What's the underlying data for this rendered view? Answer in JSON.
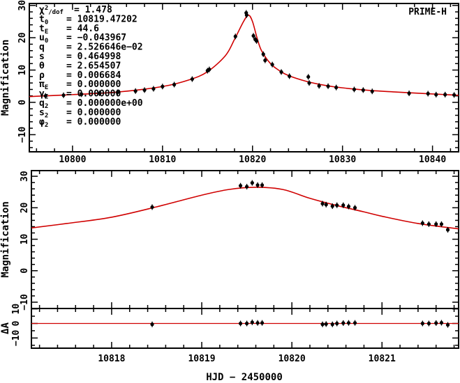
{
  "chart_data": [
    {
      "type": "scatter",
      "panel": "full light curve",
      "title": "",
      "label": "PRIME-H",
      "xlabel": "",
      "ylabel": "Magnification",
      "xlim": [
        10795.2,
        10842.9
      ],
      "ylim": [
        -15.3,
        30.6
      ],
      "xticks": [
        10800,
        10810,
        10820,
        10830,
        10840
      ],
      "yticks": [
        -10,
        0,
        10,
        20,
        30
      ],
      "model_color": "#d00000",
      "parameters": [
        {
          "sym": "χ",
          "sup": "2",
          "sub": "/dof",
          "value": "= 1.478"
        },
        {
          "sym": "t",
          "sub": "0",
          "value": "= 10819.47202"
        },
        {
          "sym": "t",
          "sub": "E",
          "value": "= 44.6"
        },
        {
          "sym": "u",
          "sub": "0",
          "value": "= −0.043967"
        },
        {
          "sym": "q",
          "sub": "",
          "value": "= 2.526646e−02"
        },
        {
          "sym": "s",
          "sub": "",
          "value": "= 0.464998"
        },
        {
          "sym": "θ",
          "sub": "",
          "value": "= 2.654507"
        },
        {
          "sym": "ρ",
          "sub": "",
          "value": "= 0.006684"
        },
        {
          "sym": "π",
          "sub": "E",
          "value": "= 0.000000"
        },
        {
          "sym": "γ",
          "sub": "E",
          "value": "= 0.000000"
        },
        {
          "sym": "q",
          "sub": "2",
          "value": "= 0.000000e+00"
        },
        {
          "sym": "s",
          "sub": "2",
          "value": "= 0.000000"
        },
        {
          "sym": "φ",
          "sub": "2",
          "value": "= 0.000000"
        }
      ],
      "points": [
        [
          10797.0,
          2.0
        ],
        [
          10799.0,
          2.2
        ],
        [
          10801.0,
          2.5
        ],
        [
          10803.0,
          2.8
        ],
        [
          10805.0,
          3.1
        ],
        [
          10807.0,
          3.5
        ],
        [
          10808.0,
          3.8
        ],
        [
          10809.0,
          4.2
        ],
        [
          10810.0,
          4.9
        ],
        [
          10811.3,
          5.5
        ],
        [
          10813.3,
          7.2
        ],
        [
          10815.0,
          9.8
        ],
        [
          10815.2,
          10.2
        ],
        [
          10818.1,
          20.4
        ],
        [
          10819.3,
          27.7
        ],
        [
          10819.35,
          27.0
        ],
        [
          10820.1,
          20.6
        ],
        [
          10820.3,
          19.5
        ],
        [
          10820.45,
          19.0
        ],
        [
          10821.2,
          14.9
        ],
        [
          10821.4,
          13.0
        ],
        [
          10822.2,
          11.7
        ],
        [
          10823.2,
          9.4
        ],
        [
          10824.1,
          8.1
        ],
        [
          10826.2,
          7.9
        ],
        [
          10826.3,
          6.0
        ],
        [
          10827.4,
          5.1
        ],
        [
          10828.4,
          5.0
        ],
        [
          10829.3,
          4.6
        ],
        [
          10831.3,
          4.0
        ],
        [
          10832.3,
          3.8
        ],
        [
          10833.3,
          3.4
        ],
        [
          10837.4,
          2.8
        ],
        [
          10839.5,
          2.7
        ],
        [
          10840.4,
          2.4
        ],
        [
          10841.4,
          2.4
        ],
        [
          10842.4,
          2.3
        ]
      ],
      "model": [
        [
          10795.2,
          1.8
        ],
        [
          10800,
          2.4
        ],
        [
          10805,
          3.2
        ],
        [
          10810,
          4.9
        ],
        [
          10813,
          7.0
        ],
        [
          10815,
          9.5
        ],
        [
          10817,
          14.5
        ],
        [
          10818,
          19.5
        ],
        [
          10819,
          25.0
        ],
        [
          10819.55,
          27.0
        ],
        [
          10820,
          25.0
        ],
        [
          10820.5,
          20.0
        ],
        [
          10821,
          16.0
        ],
        [
          10822,
          12.0
        ],
        [
          10823,
          9.8
        ],
        [
          10824,
          8.3
        ],
        [
          10826,
          6.5
        ],
        [
          10828,
          5.3
        ],
        [
          10830,
          4.5
        ],
        [
          10833,
          3.7
        ],
        [
          10836,
          3.2
        ],
        [
          10840,
          2.6
        ],
        [
          10842.9,
          2.2
        ]
      ]
    },
    {
      "type": "scatter",
      "panel": "zoomed peak",
      "xlabel": "",
      "ylabel": "Magnification",
      "xlim": [
        10817.11,
        10821.85
      ],
      "ylim": [
        -12.0,
        31.8
      ],
      "xticks": [
        10818,
        10819,
        10820,
        10821
      ],
      "yticks": [
        -10,
        0,
        10,
        20,
        30
      ],
      "points": [
        [
          10818.45,
          20.2
        ],
        [
          10819.43,
          27.0
        ],
        [
          10819.5,
          26.7
        ],
        [
          10819.56,
          27.9
        ],
        [
          10819.62,
          27.2
        ],
        [
          10819.67,
          27.2
        ],
        [
          10820.34,
          21.3
        ],
        [
          10820.38,
          21.0
        ],
        [
          10820.45,
          20.5
        ],
        [
          10820.5,
          20.8
        ],
        [
          10820.57,
          20.8
        ],
        [
          10820.63,
          20.4
        ],
        [
          10820.7,
          20.0
        ],
        [
          10821.45,
          15.1
        ],
        [
          10821.52,
          14.8
        ],
        [
          10821.6,
          14.8
        ],
        [
          10821.66,
          14.8
        ],
        [
          10821.73,
          13.0
        ]
      ],
      "model": [
        [
          10817.11,
          13.6
        ],
        [
          10817.5,
          15.0
        ],
        [
          10818,
          17.0
        ],
        [
          10818.5,
          20.3
        ],
        [
          10819,
          24.0
        ],
        [
          10819.3,
          25.8
        ],
        [
          10819.6,
          26.5
        ],
        [
          10819.9,
          25.8
        ],
        [
          10820.2,
          23.0
        ],
        [
          10820.5,
          20.7
        ],
        [
          10820.8,
          18.7
        ],
        [
          10821,
          17.3
        ],
        [
          10821.4,
          15.0
        ],
        [
          10821.85,
          13.3
        ]
      ]
    },
    {
      "type": "scatter",
      "panel": "residuals",
      "xlabel": "HJD − 2450000",
      "ylabel": "ΔA",
      "xlim": [
        10817.11,
        10821.85
      ],
      "ylim": [
        -17,
        10.3
      ],
      "xticks": [
        10818,
        10819,
        10820,
        10821
      ],
      "xticklabels": [
        "10818",
        "10819",
        "10820",
        "10821"
      ],
      "yticks": [
        -10,
        0,
        10
      ],
      "points": [
        [
          10818.45,
          -0.6
        ],
        [
          10819.43,
          0.0
        ],
        [
          10819.5,
          0.0
        ],
        [
          10819.56,
          0.8
        ],
        [
          10819.62,
          0.4
        ],
        [
          10819.67,
          0.4
        ],
        [
          10820.34,
          -0.6
        ],
        [
          10820.38,
          -0.4
        ],
        [
          10820.45,
          -0.6
        ],
        [
          10820.5,
          0.0
        ],
        [
          10820.57,
          0.3
        ],
        [
          10820.63,
          0.4
        ],
        [
          10820.7,
          0.4
        ],
        [
          10821.45,
          0.0
        ],
        [
          10821.52,
          0.0
        ],
        [
          10821.6,
          0.3
        ],
        [
          10821.66,
          0.5
        ],
        [
          10821.73,
          -1.0
        ]
      ]
    }
  ]
}
